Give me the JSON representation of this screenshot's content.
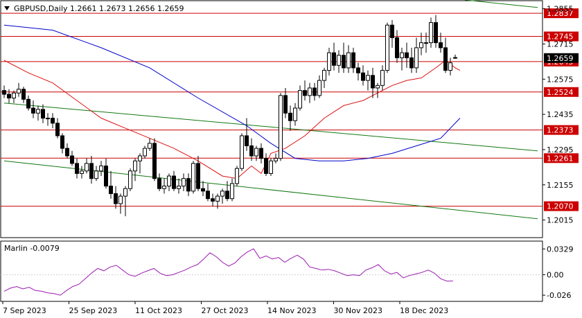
{
  "header": {
    "symbol": "GBPUSD,Daily",
    "ohlc": "1.2661 1.2673 1.2656 1.2659",
    "menu_icon": "triangle-down-icon"
  },
  "colors": {
    "up_candle": "#ffffff",
    "down_candle": "#000000",
    "ma_slow": "#0000cc",
    "ma_fast": "#dd1111",
    "trend": "#117711",
    "level": "#cc0000",
    "oscillator": "#9a1ab0",
    "current_price_bg": "#000000"
  },
  "chart_data": [
    {
      "type": "candlestick",
      "title": "GBPUSD,Daily",
      "ylim": [
        1.1945,
        1.2887
      ],
      "y_ticks": [
        "1.2015",
        "1.2155",
        "1.2295",
        "1.2435",
        "1.2575",
        "1.2715",
        "1.2855"
      ],
      "current_price": "1.2659",
      "x_ticks": [
        "7 Sep 2023",
        "25 Sep 2023",
        "11 Oct 2023",
        "27 Oct 2023",
        "14 Nov 2023",
        "30 Nov 2023",
        "18 Dec 2023"
      ],
      "levels": [
        "1.2837",
        "1.2745",
        "1.2645",
        "1.2524",
        "1.2373",
        "1.2261",
        "1.2070"
      ],
      "candles": [
        [
          1.253,
          1.255,
          1.25,
          1.2515
        ],
        [
          1.2515,
          1.2535,
          1.248,
          1.25
        ],
        [
          1.25,
          1.253,
          1.248,
          1.252
        ],
        [
          1.252,
          1.256,
          1.2505,
          1.2535
        ],
        [
          1.2535,
          1.2545,
          1.248,
          1.2495
        ],
        [
          1.2495,
          1.251,
          1.245,
          1.246
        ],
        [
          1.246,
          1.249,
          1.242,
          1.244
        ],
        [
          1.244,
          1.247,
          1.241,
          1.2455
        ],
        [
          1.2455,
          1.2475,
          1.24,
          1.242
        ],
        [
          1.242,
          1.244,
          1.239,
          1.242
        ],
        [
          1.242,
          1.244,
          1.238,
          1.24
        ],
        [
          1.24,
          1.242,
          1.234,
          1.235
        ],
        [
          1.235,
          1.236,
          1.228,
          1.23
        ],
        [
          1.23,
          1.232,
          1.226,
          1.227
        ],
        [
          1.227,
          1.229,
          1.223,
          1.224
        ],
        [
          1.224,
          1.226,
          1.218,
          1.22
        ],
        [
          1.22,
          1.223,
          1.218,
          1.221
        ],
        [
          1.221,
          1.226,
          1.22,
          1.224
        ],
        [
          1.224,
          1.227,
          1.216,
          1.218
        ],
        [
          1.218,
          1.223,
          1.217,
          1.221
        ],
        [
          1.221,
          1.225,
          1.219,
          1.223
        ],
        [
          1.223,
          1.226,
          1.214,
          1.215
        ],
        [
          1.215,
          1.221,
          1.21,
          1.212
        ],
        [
          1.212,
          1.215,
          1.206,
          1.208
        ],
        [
          1.208,
          1.212,
          1.204,
          1.211
        ],
        [
          1.211,
          1.215,
          1.203,
          1.214
        ],
        [
          1.214,
          1.222,
          1.213,
          1.221
        ],
        [
          1.221,
          1.226,
          1.217,
          1.225
        ],
        [
          1.225,
          1.228,
          1.22,
          1.227
        ],
        [
          1.227,
          1.231,
          1.226,
          1.23
        ],
        [
          1.23,
          1.234,
          1.229,
          1.232
        ],
        [
          1.232,
          1.234,
          1.217,
          1.218
        ],
        [
          1.218,
          1.22,
          1.213,
          1.214
        ],
        [
          1.214,
          1.218,
          1.212,
          1.215
        ],
        [
          1.215,
          1.22,
          1.213,
          1.219
        ],
        [
          1.219,
          1.221,
          1.213,
          1.214
        ],
        [
          1.214,
          1.218,
          1.212,
          1.215
        ],
        [
          1.215,
          1.22,
          1.213,
          1.218
        ],
        [
          1.218,
          1.22,
          1.211,
          1.213
        ],
        [
          1.213,
          1.225,
          1.212,
          1.224
        ],
        [
          1.224,
          1.227,
          1.213,
          1.214
        ],
        [
          1.214,
          1.217,
          1.211,
          1.213
        ],
        [
          1.213,
          1.216,
          1.209,
          1.21
        ],
        [
          1.21,
          1.212,
          1.207,
          1.209
        ],
        [
          1.209,
          1.212,
          1.206,
          1.211
        ],
        [
          1.211,
          1.214,
          1.208,
          1.213
        ],
        [
          1.213,
          1.217,
          1.209,
          1.21
        ],
        [
          1.21,
          1.218,
          1.209,
          1.216
        ],
        [
          1.216,
          1.223,
          1.215,
          1.222
        ],
        [
          1.222,
          1.236,
          1.221,
          1.235
        ],
        [
          1.235,
          1.242,
          1.229,
          1.231
        ],
        [
          1.231,
          1.234,
          1.225,
          1.227
        ],
        [
          1.227,
          1.231,
          1.225,
          1.23
        ],
        [
          1.23,
          1.232,
          1.224,
          1.226
        ],
        [
          1.226,
          1.228,
          1.219,
          1.22
        ],
        [
          1.22,
          1.226,
          1.219,
          1.225
        ],
        [
          1.225,
          1.228,
          1.224,
          1.226
        ],
        [
          1.226,
          1.252,
          1.225,
          1.251
        ],
        [
          1.251,
          1.254,
          1.242,
          1.244
        ],
        [
          1.244,
          1.247,
          1.237,
          1.241
        ],
        [
          1.241,
          1.248,
          1.239,
          1.246
        ],
        [
          1.246,
          1.255,
          1.245,
          1.253
        ],
        [
          1.253,
          1.257,
          1.249,
          1.251
        ],
        [
          1.251,
          1.256,
          1.248,
          1.254
        ],
        [
          1.254,
          1.256,
          1.249,
          1.251
        ],
        [
          1.251,
          1.259,
          1.25,
          1.257
        ],
        [
          1.257,
          1.262,
          1.254,
          1.261
        ],
        [
          1.261,
          1.27,
          1.259,
          1.268
        ],
        [
          1.268,
          1.272,
          1.261,
          1.263
        ],
        [
          1.263,
          1.269,
          1.26,
          1.267
        ],
        [
          1.267,
          1.272,
          1.26,
          1.262
        ],
        [
          1.262,
          1.271,
          1.26,
          1.268
        ],
        [
          1.268,
          1.27,
          1.26,
          1.262
        ],
        [
          1.262,
          1.264,
          1.257,
          1.26
        ],
        [
          1.26,
          1.263,
          1.255,
          1.257
        ],
        [
          1.257,
          1.261,
          1.253,
          1.259
        ],
        [
          1.259,
          1.262,
          1.25,
          1.254
        ],
        [
          1.254,
          1.256,
          1.25,
          1.255
        ],
        [
          1.255,
          1.263,
          1.253,
          1.261
        ],
        [
          1.261,
          1.28,
          1.26,
          1.279
        ],
        [
          1.279,
          1.281,
          1.27,
          1.274
        ],
        [
          1.274,
          1.277,
          1.264,
          1.266
        ],
        [
          1.266,
          1.27,
          1.261,
          1.268
        ],
        [
          1.268,
          1.272,
          1.262,
          1.266
        ],
        [
          1.266,
          1.27,
          1.26,
          1.262
        ],
        [
          1.262,
          1.274,
          1.26,
          1.27
        ],
        [
          1.27,
          1.276,
          1.267,
          1.272
        ],
        [
          1.272,
          1.276,
          1.268,
          1.272
        ],
        [
          1.272,
          1.282,
          1.27,
          1.28
        ],
        [
          1.28,
          1.283,
          1.27,
          1.272
        ],
        [
          1.272,
          1.276,
          1.268,
          1.27
        ],
        [
          1.27,
          1.274,
          1.26,
          1.261
        ],
        [
          1.261,
          1.266,
          1.259,
          1.264
        ],
        [
          1.2661,
          1.2673,
          1.2656,
          1.2659
        ]
      ],
      "ma_slow": [
        [
          0,
          1.279
        ],
        [
          10,
          1.277
        ],
        [
          20,
          1.27
        ],
        [
          30,
          1.262
        ],
        [
          40,
          1.25
        ],
        [
          50,
          1.239
        ],
        [
          55,
          1.232
        ],
        [
          60,
          1.226
        ],
        [
          65,
          1.225
        ],
        [
          70,
          1.225
        ],
        [
          75,
          1.226
        ],
        [
          80,
          1.228
        ],
        [
          85,
          1.231
        ],
        [
          90,
          1.234
        ],
        [
          94,
          1.242
        ]
      ],
      "ma_fast": [
        [
          0,
          1.265
        ],
        [
          5,
          1.26
        ],
        [
          10,
          1.256
        ],
        [
          15,
          1.249
        ],
        [
          20,
          1.242
        ],
        [
          25,
          1.238
        ],
        [
          30,
          1.234
        ],
        [
          35,
          1.23
        ],
        [
          40,
          1.225
        ],
        [
          45,
          1.219
        ],
        [
          48,
          1.218
        ],
        [
          51,
          1.223
        ],
        [
          53,
          1.22
        ],
        [
          55,
          1.228
        ],
        [
          58,
          1.23
        ],
        [
          62,
          1.235
        ],
        [
          66,
          1.242
        ],
        [
          70,
          1.247
        ],
        [
          74,
          1.249
        ],
        [
          78,
          1.253
        ],
        [
          80,
          1.255
        ],
        [
          83,
          1.257
        ],
        [
          86,
          1.258
        ],
        [
          89,
          1.262
        ],
        [
          91,
          1.265
        ],
        [
          93,
          1.262
        ],
        [
          94,
          1.261
        ]
      ],
      "trendlines": [
        {
          "from": [
            0,
            1.248
          ],
          "to": [
            110,
            1.229
          ]
        },
        {
          "from": [
            0,
            1.225
          ],
          "to": [
            110,
            1.202
          ]
        },
        {
          "from": [
            95,
            1.289
          ],
          "to": [
            110,
            1.286
          ]
        }
      ]
    },
    {
      "type": "line",
      "title": "Marlin -0.0079",
      "ylim": [
        -0.033,
        0.042
      ],
      "y_ticks": [
        "0.0329",
        "0.00",
        "-0.026"
      ],
      "series": [
        {
          "name": "Marlin",
          "values": [
            -0.021,
            -0.017,
            -0.015,
            -0.018,
            -0.016,
            -0.02,
            -0.021,
            -0.023,
            -0.024,
            -0.026,
            -0.02,
            -0.015,
            -0.012,
            -0.005,
            0.002,
            0.008,
            0.005,
            0.01,
            0.012,
            0.006,
            0.0,
            -0.002,
            0.002,
            0.005,
            0.008,
            0.002,
            -0.001,
            0.0,
            0.003,
            0.006,
            0.01,
            0.013,
            0.02,
            0.028,
            0.023,
            0.016,
            0.011,
            0.015,
            0.023,
            0.029,
            0.033,
            0.021,
            0.024,
            0.02,
            0.022,
            0.016,
            0.021,
            0.025,
            0.02,
            0.01,
            0.008,
            0.006,
            0.007,
            0.005,
            0.002,
            -0.001,
            0.0,
            -0.001,
            0.006,
            0.009,
            0.013,
            0.005,
            0.001,
            0.003,
            -0.004,
            -0.001,
            0.001,
            0.003,
            0.006,
            0.002,
            -0.005,
            -0.008,
            -0.0079
          ]
        }
      ]
    }
  ]
}
